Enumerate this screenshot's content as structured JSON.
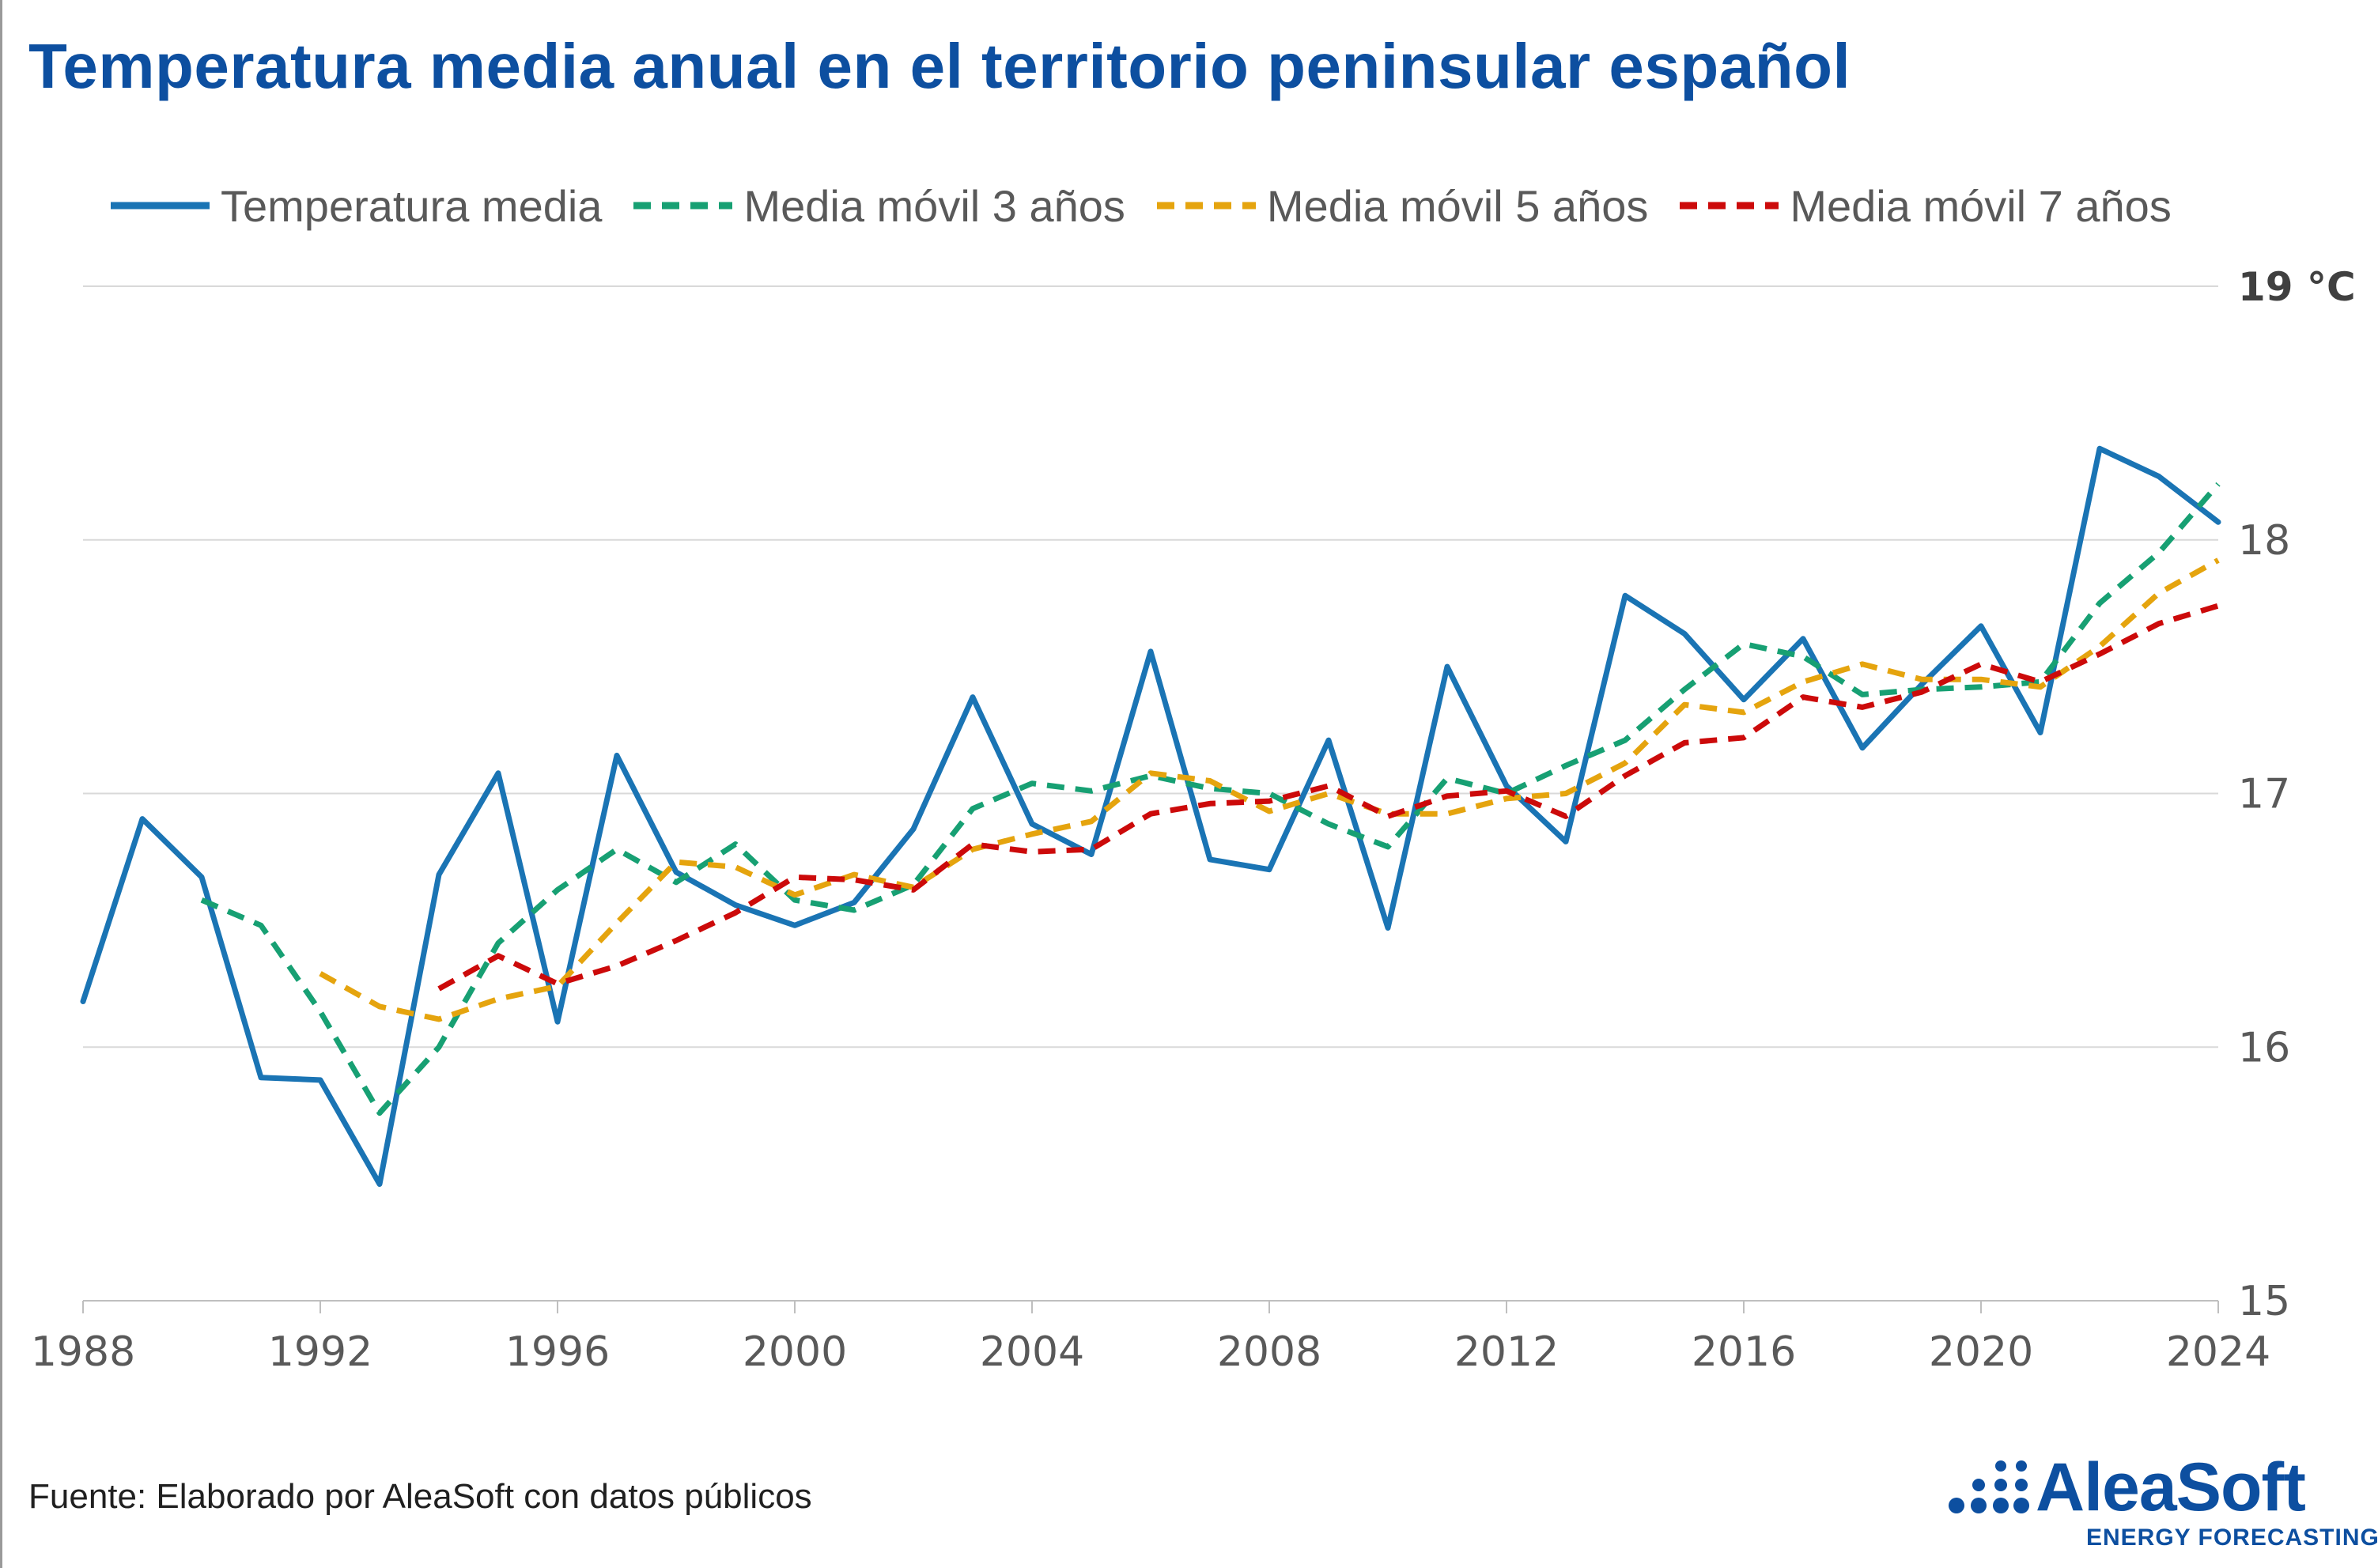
{
  "title": "Temperatura media anual en el territorio peninsular español",
  "source": "Fuente: Elaborado por AleaSoft con datos públicos",
  "logo": {
    "name": "AleaSoft",
    "tagline": "ENERGY FORECASTING"
  },
  "colors": {
    "title": "#0d4fa0",
    "grid": "#d9d9d9",
    "axis_text": "#595959",
    "series": [
      "#1a74b4",
      "#17a073",
      "#e5a40e",
      "#cc0a0a"
    ]
  },
  "chart_data": {
    "type": "line",
    "title": "Temperatura media anual en el territorio peninsular español",
    "ylabel": "°C",
    "xlabel": "",
    "xlim": [
      1988,
      2024
    ],
    "ylim": [
      15,
      19
    ],
    "yticks": [
      15,
      16,
      17,
      18,
      19
    ],
    "xticks": [
      1988,
      1992,
      1996,
      2000,
      2004,
      2008,
      2012,
      2016,
      2020,
      2024
    ],
    "y_axis_position": "right",
    "grid": true,
    "legend_position": "top",
    "series": [
      {
        "name": "Temperatura media",
        "style": "solid",
        "color": "#1a74b4",
        "x": [
          1988,
          1989,
          1990,
          1991,
          1992,
          1993,
          1994,
          1995,
          1996,
          1997,
          1998,
          1999,
          2000,
          2001,
          2002,
          2003,
          2004,
          2005,
          2006,
          2007,
          2008,
          2009,
          2010,
          2011,
          2012,
          2013,
          2014,
          2015,
          2016,
          2017,
          2018,
          2019,
          2020,
          2021,
          2022,
          2023,
          2024
        ],
        "values": [
          16.18,
          16.9,
          16.67,
          15.88,
          15.87,
          15.46,
          16.68,
          17.08,
          16.1,
          17.15,
          16.69,
          16.56,
          16.48,
          16.57,
          16.86,
          17.38,
          16.88,
          16.76,
          17.56,
          16.74,
          16.7,
          17.21,
          16.47,
          17.5,
          17.03,
          16.81,
          17.78,
          17.63,
          17.37,
          17.61,
          17.18,
          17.43,
          17.66,
          17.24,
          18.36,
          18.25,
          18.07
        ]
      },
      {
        "name": "Media móvil 3 años",
        "style": "dashed",
        "color": "#17a073",
        "x": [
          1990,
          1991,
          1992,
          1993,
          1994,
          1995,
          1996,
          1997,
          1998,
          1999,
          2000,
          2001,
          2002,
          2003,
          2004,
          2005,
          2006,
          2007,
          2008,
          2009,
          2010,
          2011,
          2012,
          2013,
          2014,
          2015,
          2016,
          2017,
          2018,
          2019,
          2020,
          2021,
          2022,
          2023,
          2024
        ],
        "values": [
          16.58,
          16.48,
          16.14,
          15.74,
          16.0,
          16.41,
          16.62,
          16.78,
          16.65,
          16.8,
          16.58,
          16.54,
          16.64,
          16.94,
          17.04,
          17.01,
          17.07,
          17.02,
          17.0,
          16.88,
          16.79,
          17.06,
          17.0,
          17.11,
          17.21,
          17.41,
          17.59,
          17.54,
          17.39,
          17.41,
          17.42,
          17.44,
          17.75,
          17.95,
          18.22
        ]
      },
      {
        "name": "Media móvil 5 años",
        "style": "dashed",
        "color": "#e5a40e",
        "x": [
          1992,
          1993,
          1994,
          1995,
          1996,
          1997,
          1998,
          1999,
          2000,
          2001,
          2002,
          2003,
          2004,
          2005,
          2006,
          2007,
          2008,
          2009,
          2010,
          2011,
          2012,
          2013,
          2014,
          2015,
          2016,
          2017,
          2018,
          2019,
          2020,
          2021,
          2022,
          2023,
          2024
        ],
        "values": [
          16.29,
          16.16,
          16.11,
          16.19,
          16.24,
          16.49,
          16.73,
          16.71,
          16.6,
          16.68,
          16.63,
          16.78,
          16.84,
          16.89,
          17.08,
          17.05,
          16.93,
          17.0,
          16.92,
          16.92,
          16.98,
          17.0,
          17.12,
          17.35,
          17.32,
          17.44,
          17.51,
          17.45,
          17.45,
          17.42,
          17.58,
          17.79,
          17.92
        ]
      },
      {
        "name": "Media móvil 7 años",
        "style": "dashed",
        "color": "#cc0a0a",
        "x": [
          1994,
          1995,
          1996,
          1997,
          1998,
          1999,
          2000,
          2001,
          2002,
          2003,
          2004,
          2005,
          2006,
          2007,
          2008,
          2009,
          2010,
          2011,
          2012,
          2013,
          2014,
          2015,
          2016,
          2017,
          2018,
          2019,
          2020,
          2021,
          2022,
          2023,
          2024
        ],
        "values": [
          16.23,
          16.36,
          16.25,
          16.32,
          16.42,
          16.53,
          16.67,
          16.66,
          16.62,
          16.8,
          16.77,
          16.78,
          16.92,
          16.96,
          16.97,
          17.03,
          16.91,
          16.99,
          17.01,
          16.91,
          17.07,
          17.2,
          17.22,
          17.38,
          17.34,
          17.4,
          17.51,
          17.44,
          17.55,
          17.67,
          17.74
        ]
      }
    ]
  }
}
